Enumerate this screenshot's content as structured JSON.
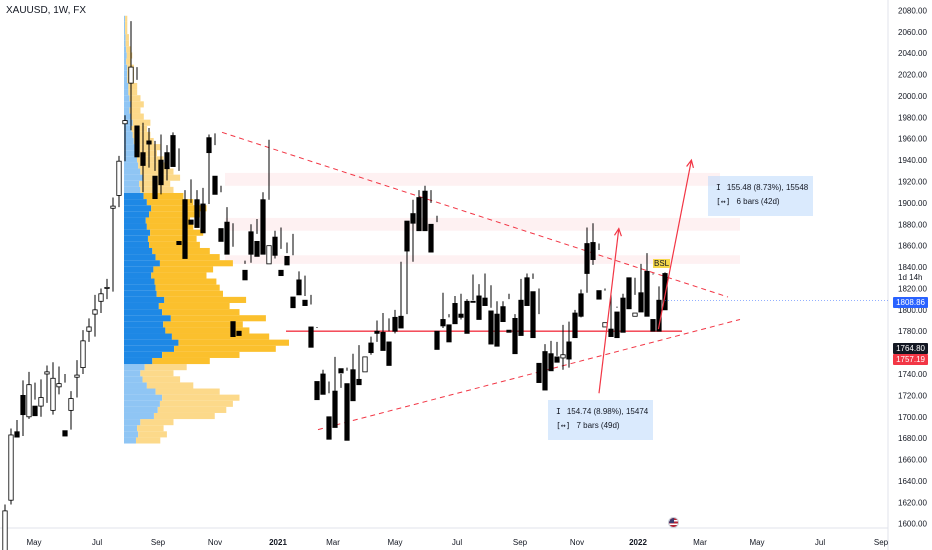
{
  "header": {
    "symbol": "XAUUSD, 1W, FX"
  },
  "chart_data": {
    "type": "candlestick",
    "symbol": "XAUUSD",
    "timeframe": "1W",
    "source": "FX",
    "ylim": [
      1596,
      2086
    ],
    "y_ticks": [
      1600,
      1620,
      1640,
      1660,
      1680,
      1700,
      1720,
      1740,
      1760,
      1780,
      1800,
      1820,
      1840,
      1860,
      1880,
      1900,
      1920,
      1940,
      1960,
      1980,
      2000,
      2020,
      2040,
      2060,
      2080
    ],
    "x_labels": [
      "May",
      "Jul",
      "Sep",
      "Nov",
      "2021",
      "Mar",
      "May",
      "Jul",
      "Sep",
      "Nov",
      "2022",
      "Mar",
      "May",
      "Jul",
      "Sep"
    ],
    "price_tags": [
      {
        "value": "1808.86",
        "price": 1808.86,
        "color": "#2962ff"
      },
      {
        "value": "1764.80",
        "price": 1764.8,
        "color": "#131722"
      },
      {
        "value": "1757.19",
        "price": 1757.19,
        "color": "#f23645"
      }
    ],
    "countdown": "1d 14h",
    "bsl_label": "BSL",
    "measure_up": {
      "line1": "155.48 (8.73%), 15548",
      "line2": "6 bars (42d)"
    },
    "measure_down": {
      "line1": "154.74 (8.98%), 15474",
      "line2": "7 bars (49d)"
    },
    "candles": [
      [
        1575,
        1618,
        1612,
        1575
      ],
      [
        1622,
        1689,
        1683,
        1618
      ],
      [
        1686,
        1697,
        1681,
        1683
      ],
      [
        1720,
        1734,
        1702,
        1682
      ],
      [
        1700,
        1742,
        1730,
        1698
      ],
      [
        1710,
        1716,
        1701,
        1732
      ],
      [
        1710,
        1735,
        1718,
        1700
      ],
      [
        1740,
        1748,
        1742,
        1713
      ],
      [
        1706,
        1751,
        1736,
        1702
      ],
      [
        1728,
        1747,
        1731,
        1721
      ],
      [
        1687,
        1740,
        1682,
        1732
      ],
      [
        1706,
        1724,
        1717,
        1688
      ],
      [
        1737,
        1753,
        1739,
        1718
      ],
      [
        1746,
        1781,
        1771,
        1740
      ],
      [
        1780,
        1792,
        1784,
        1770
      ],
      [
        1796,
        1814,
        1800,
        1775
      ],
      [
        1808,
        1820,
        1815,
        1797
      ],
      [
        1820,
        1829,
        1821,
        1810
      ],
      [
        1895,
        1905,
        1897,
        1817
      ],
      [
        1907,
        1944,
        1939,
        1896
      ],
      [
        1974,
        1982,
        1977,
        1939
      ],
      [
        2012,
        2070,
        2027,
        1968
      ],
      [
        1972,
        2015,
        1943,
        2027
      ],
      [
        1947,
        1975,
        1935,
        1910
      ],
      [
        1958,
        1970,
        1955,
        1933
      ],
      [
        1925,
        1930,
        1904,
        1958
      ],
      [
        1940,
        1964,
        1917,
        1908
      ],
      [
        1947,
        1954,
        1932,
        1921
      ],
      [
        1963,
        1966,
        1934,
        1950
      ],
      [
        1864,
        1930,
        1861,
        1951
      ],
      [
        1903,
        1912,
        1848,
        1867
      ],
      [
        1884,
        1922,
        1880,
        1900
      ],
      [
        1903,
        1912,
        1877,
        1884
      ],
      [
        1899,
        1914,
        1872,
        1885
      ],
      [
        1961,
        1964,
        1947,
        1899
      ],
      [
        1925,
        1965,
        1908,
        1954
      ],
      [
        1876,
        1910,
        1864,
        1916
      ],
      [
        1882,
        1896,
        1852,
        1869
      ],
      [
        1789,
        1859,
        1775,
        1881
      ],
      [
        1780,
        1840,
        1776,
        1840
      ],
      [
        1837,
        1843,
        1828,
        1846
      ],
      [
        1873,
        1880,
        1852,
        1844
      ],
      [
        1864,
        1885,
        1850,
        1871
      ],
      [
        1903,
        1910,
        1852,
        1873
      ],
      [
        1843,
        1959,
        1860,
        1903
      ],
      [
        1868,
        1874,
        1851,
        1848
      ],
      [
        1837,
        1877,
        1832,
        1857
      ],
      [
        1850,
        1863,
        1842,
        1853
      ],
      [
        1812,
        1871,
        1802,
        1851
      ],
      [
        1828,
        1836,
        1814,
        1820
      ],
      [
        1809,
        1832,
        1804,
        1813
      ],
      [
        1784,
        1805,
        1765,
        1814
      ],
      [
        1733,
        1783,
        1716,
        1784
      ],
      [
        1740,
        1744,
        1721,
        1729
      ],
      [
        1700,
        1722,
        1679,
        1733
      ],
      [
        1724,
        1756,
        1690,
        1720
      ],
      [
        1745,
        1740,
        1741,
        1727
      ],
      [
        1731,
        1743,
        1678,
        1746
      ],
      [
        1744,
        1759,
        1715,
        1722
      ],
      [
        1735,
        1767,
        1730,
        1732
      ],
      [
        1742,
        1742,
        1756,
        1743
      ],
      [
        1769,
        1775,
        1760,
        1758
      ],
      [
        1780,
        1790,
        1778,
        1770
      ],
      [
        1779,
        1797,
        1762,
        1769
      ],
      [
        1770,
        1792,
        1748,
        1780
      ],
      [
        1793,
        1800,
        1780,
        1778
      ],
      [
        1794,
        1845,
        1783,
        1786
      ],
      [
        1883,
        1883,
        1855,
        1796
      ],
      [
        1890,
        1903,
        1881,
        1845
      ],
      [
        1905,
        1912,
        1874,
        1901
      ],
      [
        1911,
        1916,
        1874,
        1903
      ],
      [
        1880,
        1900,
        1854,
        1912
      ],
      [
        1780,
        1888,
        1763,
        1882
      ],
      [
        1791,
        1816,
        1785,
        1783
      ],
      [
        1786,
        1793,
        1770,
        1796
      ],
      [
        1806,
        1813,
        1787,
        1791
      ],
      [
        1796,
        1815,
        1793,
        1791
      ],
      [
        1808,
        1810,
        1778,
        1791
      ],
      [
        1808,
        1833,
        1807,
        1809
      ],
      [
        1813,
        1824,
        1791,
        1801
      ],
      [
        1811,
        1834,
        1804,
        1808
      ],
      [
        1799,
        1802,
        1768,
        1823
      ],
      [
        1796,
        1808,
        1766,
        1775
      ],
      [
        1803,
        1808,
        1789,
        1798
      ],
      [
        1781,
        1810,
        1779,
        1815
      ],
      [
        1792,
        1796,
        1759,
        1777
      ],
      [
        1809,
        1829,
        1776,
        1785
      ],
      [
        1830,
        1834,
        1804,
        1814
      ],
      [
        1817,
        1834,
        1774,
        1829
      ],
      [
        1750,
        1796,
        1732,
        1820
      ],
      [
        1761,
        1768,
        1725,
        1749
      ],
      [
        1759,
        1771,
        1743,
        1744
      ],
      [
        1756,
        1770,
        1751,
        1757
      ],
      [
        1755,
        1786,
        1758,
        1744
      ],
      [
        1770,
        1789,
        1754,
        1746
      ],
      [
        1797,
        1800,
        1774,
        1781
      ],
      [
        1815,
        1819,
        1794,
        1793
      ],
      [
        1862,
        1877,
        1834,
        1816
      ],
      [
        1863,
        1881,
        1847,
        1842
      ],
      [
        1818,
        1856,
        1810,
        1862
      ],
      [
        1784,
        1820,
        1788,
        1818
      ],
      [
        1782,
        1816,
        1775,
        1781
      ],
      [
        1798,
        1803,
        1774,
        1802
      ],
      [
        1811,
        1815,
        1779,
        1797
      ],
      [
        1830,
        1830,
        1801,
        1804
      ],
      [
        1794,
        1830,
        1797,
        1814
      ],
      [
        1816,
        1843,
        1798,
        1800
      ],
      [
        1836,
        1853,
        1794,
        1821
      ],
      [
        1791,
        1834,
        1780,
        1833
      ],
      [
        1809,
        1822,
        1780,
        1791
      ],
      [
        1834,
        1835,
        1800,
        1812
      ]
    ],
    "volume_profile_bins": [
      0.22,
      0.26,
      0.24,
      0.3,
      0.55,
      0.62,
      0.66,
      0.7,
      0.58,
      0.42,
      0.34,
      0.3,
      0.38,
      0.52,
      0.7,
      0.92,
      1.0,
      0.88,
      0.76,
      0.72,
      0.86,
      0.7,
      0.64,
      0.74,
      0.6,
      0.58,
      0.56,
      0.5,
      0.54,
      0.66,
      0.58,
      0.52,
      0.46,
      0.44,
      0.48,
      0.42,
      0.4,
      0.46,
      0.5,
      0.42,
      0.36,
      0.3,
      0.28,
      0.34,
      0.3,
      0.26,
      0.24,
      0.2,
      0.22,
      0.18,
      0.16,
      0.14,
      0.16,
      0.12,
      0.1,
      0.12,
      0.1,
      0.08,
      0.08,
      0.06,
      0.06,
      0.06,
      0.04,
      0.05,
      0.04,
      0.03,
      0.03,
      0.02,
      0.02,
      0.02
    ],
    "volume_profile_range": [
      1675,
      2075
    ],
    "volume_profile_value_area": [
      1748,
      1910
    ],
    "triangle": {
      "upper": [
        [
          0,
          1966
        ],
        [
          100,
          1812
        ]
      ],
      "lower": [
        [
          0,
          1688
        ],
        [
          100,
          1791
        ]
      ]
    },
    "support_line": 1780,
    "zones": [
      [
        1916,
        1928
      ],
      [
        1874,
        1886
      ],
      [
        1843,
        1851
      ]
    ],
    "arrow_up": [
      [
        90,
        1722
      ],
      [
        93,
        1876
      ]
    ],
    "arrow_up2": [
      [
        99,
        1782
      ],
      [
        104,
        1940
      ]
    ]
  }
}
